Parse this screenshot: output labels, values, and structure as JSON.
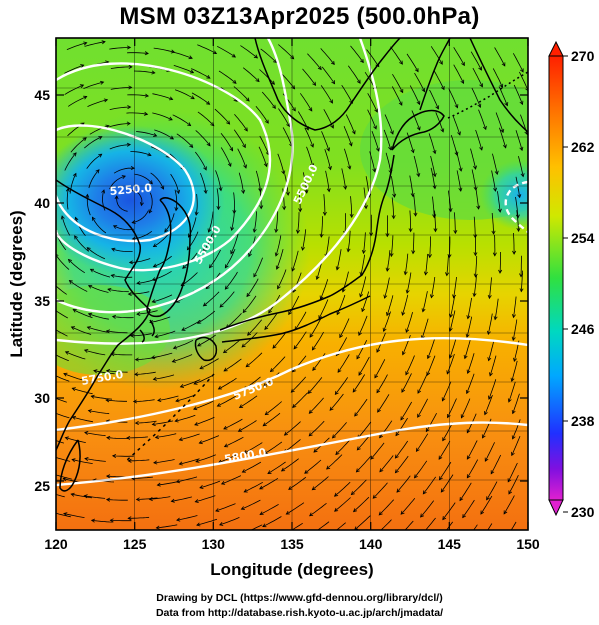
{
  "title": "MSM 03Z13Apr2025 (500.0hPa)",
  "x_axis": {
    "label": "Longitude (degrees)",
    "ticks": [
      "120",
      "125",
      "130",
      "135",
      "140",
      "145",
      "150"
    ],
    "range": [
      120,
      150
    ]
  },
  "y_axis": {
    "label": "Latitude  (degrees)",
    "ticks": [
      "25",
      "30",
      "35",
      "40",
      "45"
    ],
    "range": [
      22.5,
      47.5
    ]
  },
  "colorbar": {
    "ticks": [
      "270",
      "262",
      "254",
      "246",
      "238",
      "230"
    ],
    "range": [
      230,
      270
    ],
    "colors": [
      "#cc00cc",
      "#2020ff",
      "#00c8ff",
      "#30e050",
      "#c8e000",
      "#ffa000",
      "#ff4000"
    ]
  },
  "contour_labels": [
    "5250.0",
    "5500.0",
    "5750.0",
    "5500.0",
    "5750.0",
    "5800.0"
  ],
  "footer": {
    "line1": "Drawing by DCL (https://www.gfd-dennou.org/library/dcl/)",
    "line2": "Data from http://database.rish.kyoto-u.ac.jp/arch/jmadata/"
  },
  "map": {
    "projection": "equirectangular",
    "grid": true,
    "field": "temperature (K)",
    "streamlines": true
  }
}
